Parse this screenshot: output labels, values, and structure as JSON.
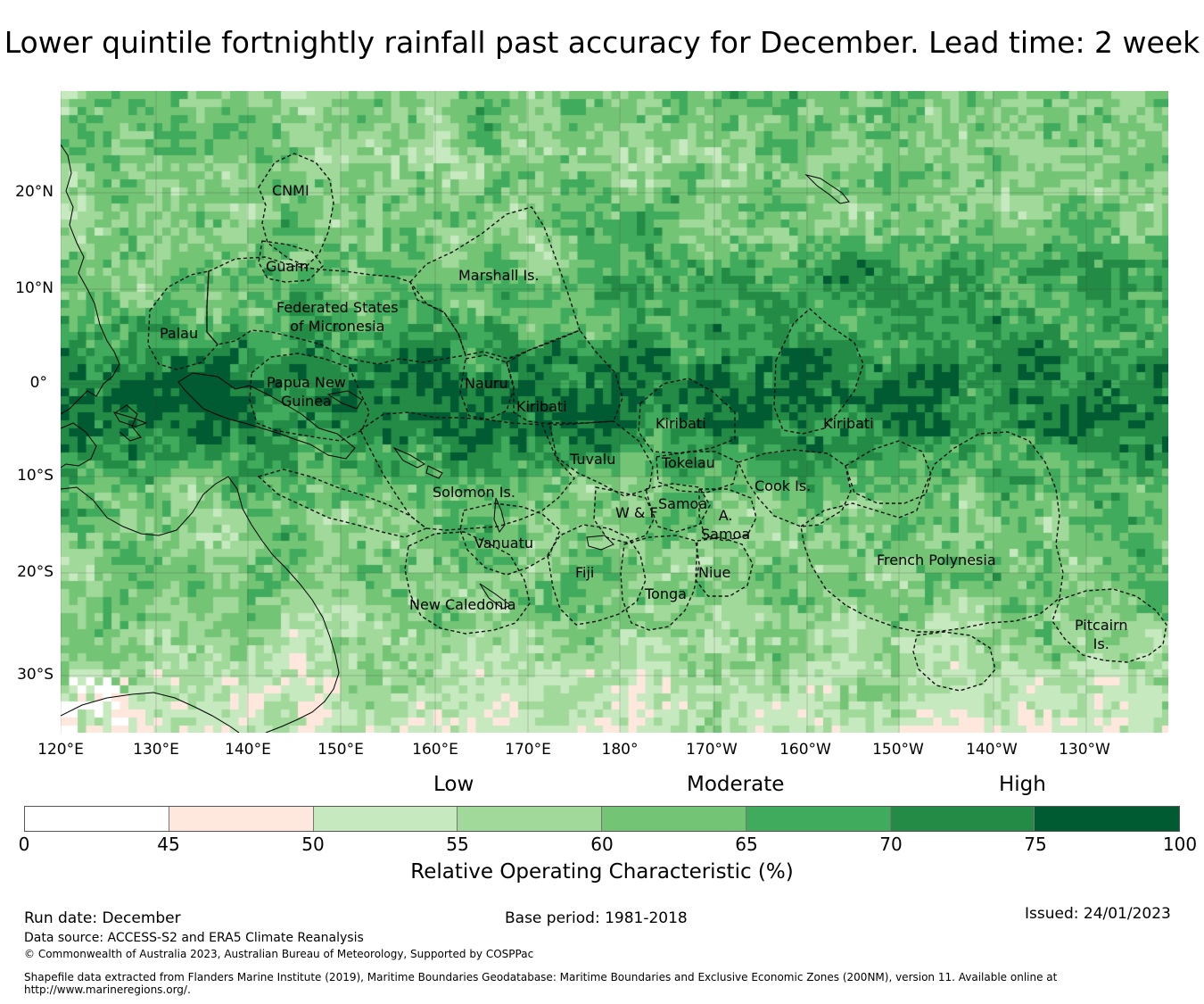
{
  "title": "Lower quintile fortnightly rainfall past accuracy for December. Lead time: 2 week",
  "map": {
    "lat_labels": [
      "20°N",
      "10°N",
      "0°",
      "10°S",
      "20°S",
      "30°S"
    ],
    "lon_labels": [
      "120°E",
      "130°E",
      "140°E",
      "150°E",
      "160°E",
      "170°E",
      "180°",
      "170°W",
      "160°W",
      "150°W",
      "140°W",
      "130°W"
    ],
    "regions": [
      {
        "id": "cnmi",
        "label": "CNMI"
      },
      {
        "id": "guam",
        "label": "Guam"
      },
      {
        "id": "marshall",
        "label": "Marshall Is."
      },
      {
        "id": "fsm",
        "label": "Federated States\nof Micronesia"
      },
      {
        "id": "palau",
        "label": "Palau"
      },
      {
        "id": "png",
        "label": "Papua New\nGuinea"
      },
      {
        "id": "nauru",
        "label": "Nauru"
      },
      {
        "id": "kiribati-w",
        "label": "Kiribati"
      },
      {
        "id": "kiribati-c",
        "label": "Kiribati"
      },
      {
        "id": "kiribati-e",
        "label": "Kiribati"
      },
      {
        "id": "tuvalu",
        "label": "Tuvalu"
      },
      {
        "id": "tokelau",
        "label": "Tokelau"
      },
      {
        "id": "cook",
        "label": "Cook Is."
      },
      {
        "id": "solomon",
        "label": "Solomon Is."
      },
      {
        "id": "samoa",
        "label": "Samoa"
      },
      {
        "id": "wf",
        "label": "W & F"
      },
      {
        "id": "asamoa",
        "label": "A.\nSamoa"
      },
      {
        "id": "vanuatu",
        "label": "Vanuatu"
      },
      {
        "id": "fiji",
        "label": "Fiji"
      },
      {
        "id": "niue",
        "label": "Niue"
      },
      {
        "id": "tonga",
        "label": "Tonga"
      },
      {
        "id": "french-poly",
        "label": "French Polynesia"
      },
      {
        "id": "new-cal",
        "label": "New Caledonia"
      },
      {
        "id": "pitcairn",
        "label": "Pitcairn\nIs."
      }
    ]
  },
  "legend": {
    "categories": [
      "Low",
      "Moderate",
      "High"
    ],
    "ticks": [
      "0",
      "45",
      "50",
      "55",
      "60",
      "65",
      "70",
      "75",
      "100"
    ],
    "colors": [
      "#ffffff",
      "#fee8dd",
      "#c7e9c0",
      "#a1d99b",
      "#74c476",
      "#41ab5d",
      "#238b45",
      "#005a32"
    ],
    "title": "Relative Operating Characteristic (%)"
  },
  "footer": {
    "run_date": "Run date: December",
    "base_period": "Base period: 1981-2018",
    "issued": "Issued: 24/01/2023",
    "data_source": "Data source: ACCESS-S2 and ERA5 Climate Reanalysis",
    "copyright": "© Commonwealth of Australia 2023, Australian Bureau of Meteorology, Supported by COSPPac",
    "shapefile": "Shapefile data extracted from Flanders Marine Institute (2019), Maritime Boundaries Geodatabase: Maritime Boundaries and Exclusive Economic Zones (200NM), version 11. Available online at http://www.marineregions.org/."
  }
}
